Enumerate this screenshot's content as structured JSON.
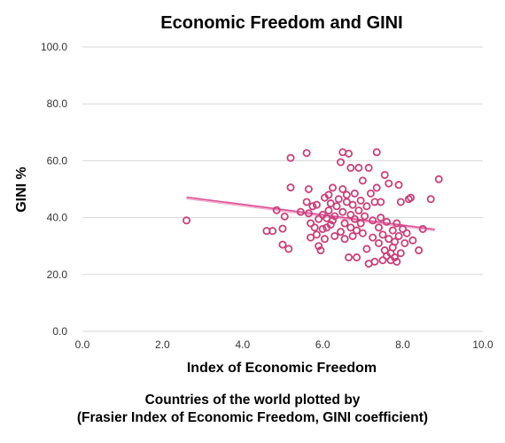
{
  "chart_data": {
    "type": "scatter",
    "title": "Economic Freedom and GINI",
    "xlabel": "Index of Economic Freedom",
    "ylabel": "GINI %",
    "xlim": [
      0,
      10
    ],
    "ylim": [
      0,
      100
    ],
    "xticks": [
      "0.0",
      "2.0",
      "4.0",
      "6.0",
      "8.0",
      "10.0"
    ],
    "yticks": [
      "0.0",
      "20.0",
      "40.0",
      "60.0",
      "80.0",
      "100.0"
    ],
    "grid": true,
    "legend": "none",
    "caption_lines": [
      "Countries of the world plotted by",
      "(Frasier Index of Economic Freedom, GINI coefficient)"
    ],
    "colors": {
      "marker": "#c8407a",
      "trendline": "#e0509a",
      "gridline": "#d7d7d7"
    },
    "trendline": {
      "x": [
        2.6,
        8.8
      ],
      "y": [
        47.2,
        35.9
      ]
    },
    "points": [
      {
        "x": 2.6,
        "y": 39.0
      },
      {
        "x": 4.6,
        "y": 35.3
      },
      {
        "x": 4.75,
        "y": 35.3
      },
      {
        "x": 4.85,
        "y": 42.6
      },
      {
        "x": 5.0,
        "y": 36.1
      },
      {
        "x": 5.0,
        "y": 30.5
      },
      {
        "x": 5.05,
        "y": 40.4
      },
      {
        "x": 5.15,
        "y": 29.0
      },
      {
        "x": 5.2,
        "y": 61.0
      },
      {
        "x": 5.2,
        "y": 50.6
      },
      {
        "x": 5.45,
        "y": 42.0
      },
      {
        "x": 5.6,
        "y": 62.7
      },
      {
        "x": 5.6,
        "y": 45.5
      },
      {
        "x": 5.65,
        "y": 50.0
      },
      {
        "x": 5.65,
        "y": 41.5
      },
      {
        "x": 5.7,
        "y": 33.0
      },
      {
        "x": 5.7,
        "y": 38.0
      },
      {
        "x": 5.75,
        "y": 44.0
      },
      {
        "x": 5.8,
        "y": 36.5
      },
      {
        "x": 5.85,
        "y": 44.5
      },
      {
        "x": 5.85,
        "y": 34.0
      },
      {
        "x": 5.9,
        "y": 39.5
      },
      {
        "x": 5.9,
        "y": 30.0
      },
      {
        "x": 5.95,
        "y": 28.5
      },
      {
        "x": 6.0,
        "y": 41.0
      },
      {
        "x": 6.0,
        "y": 36.0
      },
      {
        "x": 6.05,
        "y": 47.0
      },
      {
        "x": 6.05,
        "y": 32.5
      },
      {
        "x": 6.1,
        "y": 39.8
      },
      {
        "x": 6.1,
        "y": 36.5
      },
      {
        "x": 6.15,
        "y": 42.5
      },
      {
        "x": 6.15,
        "y": 48.0
      },
      {
        "x": 6.2,
        "y": 37.5
      },
      {
        "x": 6.2,
        "y": 45.0
      },
      {
        "x": 6.25,
        "y": 39.0
      },
      {
        "x": 6.25,
        "y": 50.5
      },
      {
        "x": 6.3,
        "y": 40.5
      },
      {
        "x": 6.3,
        "y": 33.5
      },
      {
        "x": 6.35,
        "y": 44.0
      },
      {
        "x": 6.4,
        "y": 46.5
      },
      {
        "x": 6.45,
        "y": 35.0
      },
      {
        "x": 6.45,
        "y": 59.5
      },
      {
        "x": 6.5,
        "y": 63.0
      },
      {
        "x": 6.5,
        "y": 50.0
      },
      {
        "x": 6.5,
        "y": 42.0
      },
      {
        "x": 6.55,
        "y": 32.5
      },
      {
        "x": 6.55,
        "y": 38.0
      },
      {
        "x": 6.6,
        "y": 45.5
      },
      {
        "x": 6.6,
        "y": 48.0
      },
      {
        "x": 6.65,
        "y": 62.5
      },
      {
        "x": 6.65,
        "y": 26.0
      },
      {
        "x": 6.7,
        "y": 57.5
      },
      {
        "x": 6.7,
        "y": 41.0
      },
      {
        "x": 6.7,
        "y": 36.5
      },
      {
        "x": 6.75,
        "y": 33.5
      },
      {
        "x": 6.75,
        "y": 44.5
      },
      {
        "x": 6.8,
        "y": 39.5
      },
      {
        "x": 6.8,
        "y": 48.5
      },
      {
        "x": 6.85,
        "y": 35.5
      },
      {
        "x": 6.85,
        "y": 26.0
      },
      {
        "x": 6.9,
        "y": 57.5
      },
      {
        "x": 6.9,
        "y": 42.5
      },
      {
        "x": 6.95,
        "y": 38.0
      },
      {
        "x": 6.95,
        "y": 46.0
      },
      {
        "x": 7.0,
        "y": 34.5
      },
      {
        "x": 7.0,
        "y": 53.0
      },
      {
        "x": 7.05,
        "y": 40.5
      },
      {
        "x": 7.1,
        "y": 44.0
      },
      {
        "x": 7.1,
        "y": 29.0
      },
      {
        "x": 7.15,
        "y": 23.8
      },
      {
        "x": 7.15,
        "y": 57.5
      },
      {
        "x": 7.2,
        "y": 48.5
      },
      {
        "x": 7.25,
        "y": 39.0
      },
      {
        "x": 7.25,
        "y": 33.0
      },
      {
        "x": 7.3,
        "y": 45.5
      },
      {
        "x": 7.3,
        "y": 24.5
      },
      {
        "x": 7.35,
        "y": 63.0
      },
      {
        "x": 7.35,
        "y": 50.5
      },
      {
        "x": 7.4,
        "y": 36.5
      },
      {
        "x": 7.4,
        "y": 31.0
      },
      {
        "x": 7.45,
        "y": 40.0
      },
      {
        "x": 7.45,
        "y": 45.5
      },
      {
        "x": 7.5,
        "y": 25.0
      },
      {
        "x": 7.5,
        "y": 34.0
      },
      {
        "x": 7.55,
        "y": 28.5
      },
      {
        "x": 7.55,
        "y": 55.0
      },
      {
        "x": 7.6,
        "y": 38.5
      },
      {
        "x": 7.6,
        "y": 26.5
      },
      {
        "x": 7.65,
        "y": 52.0
      },
      {
        "x": 7.65,
        "y": 32.5
      },
      {
        "x": 7.7,
        "y": 27.5
      },
      {
        "x": 7.7,
        "y": 25.0
      },
      {
        "x": 7.75,
        "y": 35.5
      },
      {
        "x": 7.75,
        "y": 29.5
      },
      {
        "x": 7.8,
        "y": 26.0
      },
      {
        "x": 7.8,
        "y": 31.5
      },
      {
        "x": 7.85,
        "y": 38.0
      },
      {
        "x": 7.85,
        "y": 24.5
      },
      {
        "x": 7.9,
        "y": 51.5
      },
      {
        "x": 7.9,
        "y": 33.5
      },
      {
        "x": 7.95,
        "y": 45.5
      },
      {
        "x": 7.95,
        "y": 27.5
      },
      {
        "x": 8.0,
        "y": 36.0
      },
      {
        "x": 8.05,
        "y": 31.0
      },
      {
        "x": 8.1,
        "y": 34.5
      },
      {
        "x": 8.15,
        "y": 46.5
      },
      {
        "x": 8.2,
        "y": 47.0
      },
      {
        "x": 8.25,
        "y": 32.0
      },
      {
        "x": 8.4,
        "y": 28.5
      },
      {
        "x": 8.5,
        "y": 36.0
      },
      {
        "x": 8.7,
        "y": 46.5
      },
      {
        "x": 8.9,
        "y": 53.5
      }
    ]
  }
}
